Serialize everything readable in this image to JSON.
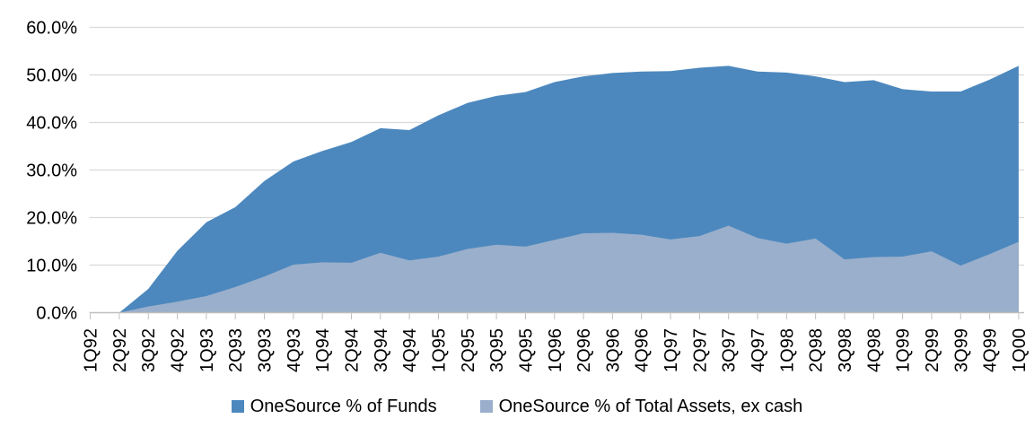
{
  "chart_data": {
    "type": "area",
    "title": "",
    "xlabel": "",
    "ylabel": "",
    "categories": [
      "1Q92",
      "2Q92",
      "3Q92",
      "4Q92",
      "1Q93",
      "2Q93",
      "3Q93",
      "4Q93",
      "1Q94",
      "2Q94",
      "3Q94",
      "4Q94",
      "1Q95",
      "2Q95",
      "3Q95",
      "4Q95",
      "1Q96",
      "2Q96",
      "3Q96",
      "4Q96",
      "1Q97",
      "2Q97",
      "3Q97",
      "4Q97",
      "1Q98",
      "2Q98",
      "3Q98",
      "4Q98",
      "1Q99",
      "2Q99",
      "3Q99",
      "4Q99",
      "1Q00"
    ],
    "series": [
      {
        "name": "OneSource % of Funds",
        "color": "#4C88BE",
        "values": [
          0,
          0,
          5.0,
          13.0,
          19.0,
          22.2,
          27.7,
          31.8,
          34.0,
          35.9,
          38.8,
          38.4,
          41.5,
          44.1,
          45.6,
          46.4,
          48.5,
          49.7,
          50.4,
          50.7,
          50.8,
          51.5,
          51.9,
          50.7,
          50.5,
          49.7,
          48.5,
          48.9,
          47.0,
          46.5,
          46.5,
          49.0,
          51.9
        ]
      },
      {
        "name": "OneSource % of Total Assets, ex cash",
        "color": "#9AAFCB",
        "values": [
          0,
          0,
          1.3,
          2.3,
          3.5,
          5.4,
          7.6,
          10.1,
          10.6,
          10.5,
          12.6,
          11.0,
          11.8,
          13.4,
          14.3,
          13.9,
          15.3,
          16.7,
          16.8,
          16.4,
          15.4,
          16.1,
          18.3,
          15.7,
          14.5,
          15.6,
          11.2,
          11.7,
          11.8,
          12.9,
          9.9,
          12.3,
          14.9
        ]
      }
    ],
    "ylim": [
      0,
      60
    ],
    "y_tick_values": [
      0,
      10,
      20,
      30,
      40,
      50,
      60
    ],
    "y_tick_labels": [
      "0.0%",
      "10.0%",
      "20.0%",
      "30.0%",
      "40.0%",
      "50.0%",
      "60.0%"
    ],
    "grid": "horizontal",
    "legend_position": "bottom",
    "overlapping": true,
    "x_labels_rotated_degrees": -90
  },
  "colors": {
    "gridline": "#D9D9D9",
    "axis": "#BFBFBF",
    "text": "#000000",
    "background": "#FFFFFF"
  }
}
